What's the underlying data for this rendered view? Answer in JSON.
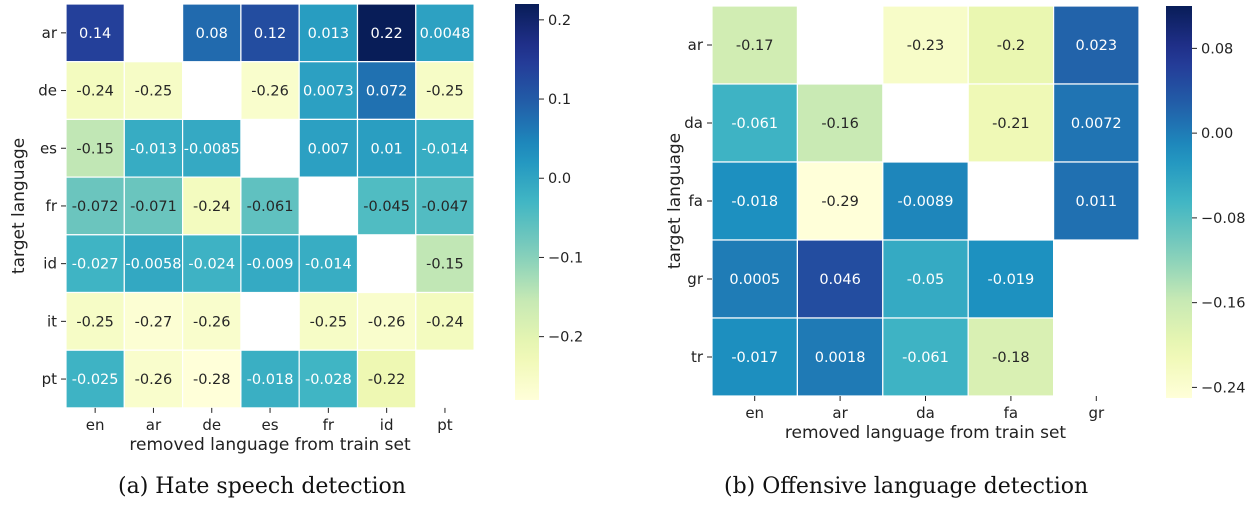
{
  "chart_data": [
    {
      "type": "heatmap",
      "caption": "(a) Hate speech detection",
      "xlabel": "removed language from train set",
      "ylabel": "target language",
      "x_categories": [
        "en",
        "ar",
        "de",
        "es",
        "fr",
        "id",
        "pt"
      ],
      "y_categories": [
        "ar",
        "de",
        "es",
        "fr",
        "id",
        "it",
        "pt"
      ],
      "colormap": "YlGnBu",
      "vmin": -0.28,
      "vmax": 0.22,
      "colorbar_ticks": [
        "0.2",
        "0.1",
        "0.0",
        "−0.1",
        "−0.2"
      ],
      "colorbar_tick_values": [
        0.2,
        0.1,
        0.0,
        -0.1,
        -0.2
      ],
      "values": [
        [
          0.14,
          null,
          0.08,
          0.12,
          0.013,
          0.22,
          0.0048
        ],
        [
          -0.24,
          -0.25,
          null,
          -0.26,
          0.0073,
          0.072,
          -0.25
        ],
        [
          -0.15,
          -0.013,
          -0.0085,
          null,
          0.007,
          0.01,
          -0.014
        ],
        [
          -0.072,
          -0.071,
          -0.24,
          -0.061,
          null,
          -0.045,
          -0.047
        ],
        [
          -0.027,
          -0.0058,
          -0.024,
          -0.009,
          -0.014,
          null,
          -0.15
        ],
        [
          -0.25,
          -0.27,
          -0.26,
          null,
          -0.25,
          -0.26,
          -0.24
        ],
        [
          -0.025,
          -0.26,
          -0.28,
          -0.018,
          -0.028,
          -0.22,
          null
        ]
      ],
      "labels": [
        [
          "0.14",
          "",
          "0.08",
          "0.12",
          "0.013",
          "0.22",
          "0.0048"
        ],
        [
          "-0.24",
          "-0.25",
          "",
          "-0.26",
          "0.0073",
          "0.072",
          "-0.25"
        ],
        [
          "-0.15",
          "-0.013",
          "-0.0085",
          "",
          "0.007",
          "0.01",
          "-0.014"
        ],
        [
          "-0.072",
          "-0.071",
          "-0.24",
          "-0.061",
          "",
          "-0.045",
          "-0.047"
        ],
        [
          "-0.027",
          "-0.0058",
          "-0.024",
          "-0.009",
          "-0.014",
          "",
          "-0.15"
        ],
        [
          "-0.25",
          "-0.27",
          "-0.26",
          "",
          "-0.25",
          "-0.26",
          "-0.24"
        ],
        [
          "-0.025",
          "-0.26",
          "-0.28",
          "-0.018",
          "-0.028",
          "-0.22",
          ""
        ]
      ]
    },
    {
      "type": "heatmap",
      "caption": "(b) Offensive language detection",
      "xlabel": "removed language from train set",
      "ylabel": "target language",
      "x_categories": [
        "en",
        "ar",
        "da",
        "fa",
        "gr"
      ],
      "y_categories": [
        "ar",
        "da",
        "fa",
        "gr",
        "tr"
      ],
      "colormap": "YlGnBu",
      "vmin": -0.25,
      "vmax": 0.12,
      "colorbar_ticks": [
        "0.08",
        "0.00",
        "−0.08",
        "−0.16",
        "−0.24"
      ],
      "colorbar_tick_values": [
        0.08,
        0.0,
        -0.08,
        -0.16,
        -0.24
      ],
      "values": [
        [
          -0.17,
          null,
          -0.23,
          -0.2,
          0.023
        ],
        [
          -0.061,
          -0.16,
          null,
          -0.21,
          0.0072
        ],
        [
          -0.018,
          -0.29,
          -0.0089,
          null,
          0.011
        ],
        [
          0.0005,
          0.046,
          -0.05,
          -0.019,
          null
        ],
        [
          -0.017,
          0.0018,
          -0.061,
          -0.18,
          null
        ]
      ],
      "labels": [
        [
          "-0.17",
          "",
          "-0.23",
          "-0.2",
          "0.023"
        ],
        [
          "-0.061",
          "-0.16",
          "",
          "-0.21",
          "0.0072"
        ],
        [
          "-0.018",
          "-0.29",
          "-0.0089",
          "",
          "0.011"
        ],
        [
          "0.0005",
          "0.046",
          "-0.05",
          "-0.019",
          ""
        ],
        [
          "-0.017",
          "0.0018",
          "-0.061",
          "-0.18",
          ""
        ]
      ]
    }
  ]
}
